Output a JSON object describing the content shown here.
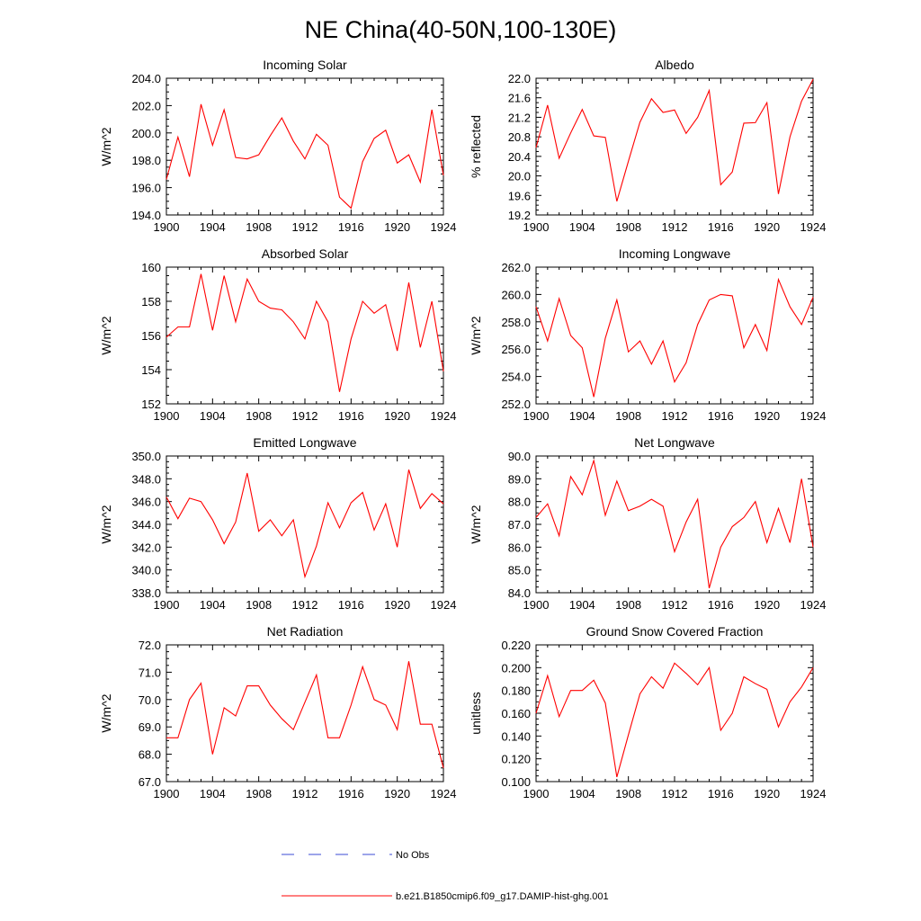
{
  "figure": {
    "title": "NE China(40-50N,100-130E)"
  },
  "colors": {
    "model_line": "#ff0000",
    "obs_line": "#3b4bd6",
    "frame": "#000000",
    "background": "#ffffff"
  },
  "legend": {
    "items": [
      {
        "label": "No Obs",
        "style": "dashed",
        "color": "#3b4bd6"
      },
      {
        "label": "b.e21.B1850cmip6.f09_g17.DAMIP-hist-ghg.001",
        "style": "solid",
        "color": "#ff0000"
      }
    ]
  },
  "chart_data": [
    {
      "type": "line",
      "title": "Incoming Solar",
      "xlabel": "",
      "ylabel": "W/m^2",
      "xlim": [
        1900,
        1924
      ],
      "ylim": [
        194.0,
        204.0
      ],
      "xticks": [
        1900,
        1904,
        1908,
        1912,
        1916,
        1920,
        1924
      ],
      "xtick_labels": [
        "1900",
        "1904",
        "1908",
        "1912",
        "1916",
        "1920",
        "1924"
      ],
      "yticks": [
        194,
        196,
        198,
        200,
        202,
        204
      ],
      "ytick_labels": [
        "194.0",
        "196.0",
        "198.0",
        "200.0",
        "202.0",
        "204.0"
      ],
      "grid": false,
      "series": [
        {
          "color": "#ff0000",
          "x": [
            1900,
            1901,
            1902,
            1903,
            1904,
            1905,
            1906,
            1907,
            1908,
            1909,
            1910,
            1911,
            1912,
            1913,
            1914,
            1915,
            1916,
            1917,
            1918,
            1919,
            1920,
            1921,
            1922,
            1923,
            1924
          ],
          "y": [
            196.6,
            199.7,
            196.8,
            202.1,
            199.1,
            201.7,
            198.2,
            198.1,
            198.4,
            199.8,
            201.1,
            199.4,
            198.1,
            199.9,
            199.1,
            195.3,
            194.5,
            197.9,
            199.6,
            200.2,
            197.8,
            198.4,
            196.4,
            201.7,
            196.9
          ]
        }
      ]
    },
    {
      "type": "line",
      "title": "Albedo",
      "xlabel": "",
      "ylabel": "% reflected",
      "xlim": [
        1900,
        1924
      ],
      "ylim": [
        19.2,
        22.0
      ],
      "xticks": [
        1900,
        1904,
        1908,
        1912,
        1916,
        1920,
        1924
      ],
      "xtick_labels": [
        "1900",
        "1904",
        "1908",
        "1912",
        "1916",
        "1920",
        "1924"
      ],
      "yticks": [
        19.2,
        19.6,
        20.0,
        20.4,
        20.8,
        21.2,
        21.6,
        22.0
      ],
      "ytick_labels": [
        "19.2",
        "19.6",
        "20.0",
        "20.4",
        "20.8",
        "21.2",
        "21.6",
        "22.0"
      ],
      "grid": false,
      "series": [
        {
          "color": "#ff0000",
          "x": [
            1900,
            1901,
            1902,
            1903,
            1904,
            1905,
            1906,
            1907,
            1908,
            1909,
            1910,
            1911,
            1912,
            1913,
            1914,
            1915,
            1916,
            1917,
            1918,
            1919,
            1920,
            1921,
            1922,
            1923,
            1924
          ],
          "y": [
            20.58,
            21.45,
            20.36,
            20.88,
            21.36,
            20.82,
            20.79,
            19.48,
            20.3,
            21.1,
            21.58,
            21.3,
            21.35,
            20.87,
            21.2,
            21.75,
            19.82,
            20.08,
            21.08,
            21.09,
            21.5,
            19.63,
            20.8,
            21.53,
            21.98
          ]
        }
      ]
    },
    {
      "type": "line",
      "title": "Absorbed Solar",
      "xlabel": "",
      "ylabel": "W/m^2",
      "xlim": [
        1900,
        1924
      ],
      "ylim": [
        152,
        160
      ],
      "xticks": [
        1900,
        1904,
        1908,
        1912,
        1916,
        1920,
        1924
      ],
      "xtick_labels": [
        "1900",
        "1904",
        "1908",
        "1912",
        "1916",
        "1920",
        "1924"
      ],
      "yticks": [
        152,
        154,
        156,
        158,
        160
      ],
      "ytick_labels": [
        "152",
        "154",
        "156",
        "158",
        "160"
      ],
      "grid": false,
      "series": [
        {
          "color": "#ff0000",
          "x": [
            1900,
            1901,
            1902,
            1903,
            1904,
            1905,
            1906,
            1907,
            1908,
            1909,
            1910,
            1911,
            1912,
            1913,
            1914,
            1915,
            1916,
            1917,
            1918,
            1919,
            1920,
            1921,
            1922,
            1923,
            1924
          ],
          "y": [
            155.9,
            156.5,
            156.5,
            159.6,
            156.3,
            159.5,
            156.8,
            159.3,
            158.0,
            157.6,
            157.5,
            156.8,
            155.8,
            158.0,
            156.8,
            152.7,
            155.8,
            158.0,
            157.3,
            157.8,
            155.1,
            159.1,
            155.3,
            158.0,
            153.9
          ]
        }
      ]
    },
    {
      "type": "line",
      "title": "Incoming Longwave",
      "xlabel": "",
      "ylabel": "W/m^2",
      "xlim": [
        1900,
        1924
      ],
      "ylim": [
        252.0,
        262.0
      ],
      "xticks": [
        1900,
        1904,
        1908,
        1912,
        1916,
        1920,
        1924
      ],
      "xtick_labels": [
        "1900",
        "1904",
        "1908",
        "1912",
        "1916",
        "1920",
        "1924"
      ],
      "yticks": [
        252,
        254,
        256,
        258,
        260,
        262
      ],
      "ytick_labels": [
        "252.0",
        "254.0",
        "256.0",
        "258.0",
        "260.0",
        "262.0"
      ],
      "grid": false,
      "series": [
        {
          "color": "#ff0000",
          "x": [
            1900,
            1901,
            1902,
            1903,
            1904,
            1905,
            1906,
            1907,
            1908,
            1909,
            1910,
            1911,
            1912,
            1913,
            1914,
            1915,
            1916,
            1917,
            1918,
            1919,
            1920,
            1921,
            1922,
            1923,
            1924
          ],
          "y": [
            259.1,
            256.6,
            259.7,
            257.0,
            256.1,
            252.5,
            256.8,
            259.6,
            255.8,
            256.6,
            254.9,
            256.6,
            253.6,
            255.0,
            257.8,
            259.6,
            260.0,
            259.9,
            256.1,
            257.8,
            255.9,
            261.1,
            259.1,
            257.8,
            259.8
          ]
        }
      ]
    },
    {
      "type": "line",
      "title": "Emitted Longwave",
      "xlabel": "",
      "ylabel": "W/m^2",
      "xlim": [
        1900,
        1924
      ],
      "ylim": [
        338.0,
        350.0
      ],
      "xticks": [
        1900,
        1904,
        1908,
        1912,
        1916,
        1920,
        1924
      ],
      "xtick_labels": [
        "1900",
        "1904",
        "1908",
        "1912",
        "1916",
        "1920",
        "1924"
      ],
      "yticks": [
        338,
        340,
        342,
        344,
        346,
        348,
        350
      ],
      "ytick_labels": [
        "338.0",
        "340.0",
        "342.0",
        "344.0",
        "346.0",
        "348.0",
        "350.0"
      ],
      "grid": false,
      "series": [
        {
          "color": "#ff0000",
          "x": [
            1900,
            1901,
            1902,
            1903,
            1904,
            1905,
            1906,
            1907,
            1908,
            1909,
            1910,
            1911,
            1912,
            1913,
            1914,
            1915,
            1916,
            1917,
            1918,
            1919,
            1920,
            1921,
            1922,
            1923,
            1924
          ],
          "y": [
            346.4,
            344.5,
            346.3,
            346.0,
            344.4,
            342.3,
            344.2,
            348.5,
            343.4,
            344.4,
            343.0,
            344.4,
            339.4,
            342.1,
            345.9,
            343.7,
            345.9,
            346.8,
            343.5,
            345.8,
            342.0,
            348.8,
            345.4,
            346.7,
            345.8
          ]
        }
      ]
    },
    {
      "type": "line",
      "title": "Net Longwave",
      "xlabel": "",
      "ylabel": "W/m^2",
      "xlim": [
        1900,
        1924
      ],
      "ylim": [
        84.0,
        90.0
      ],
      "xticks": [
        1900,
        1904,
        1908,
        1912,
        1916,
        1920,
        1924
      ],
      "xtick_labels": [
        "1900",
        "1904",
        "1908",
        "1912",
        "1916",
        "1920",
        "1924"
      ],
      "yticks": [
        84,
        85,
        86,
        87,
        88,
        89,
        90
      ],
      "ytick_labels": [
        "84.0",
        "85.0",
        "86.0",
        "87.0",
        "88.0",
        "89.0",
        "90.0"
      ],
      "grid": false,
      "series": [
        {
          "color": "#ff0000",
          "x": [
            1900,
            1901,
            1902,
            1903,
            1904,
            1905,
            1906,
            1907,
            1908,
            1909,
            1910,
            1911,
            1912,
            1913,
            1914,
            1915,
            1916,
            1917,
            1918,
            1919,
            1920,
            1921,
            1922,
            1923,
            1924
          ],
          "y": [
            87.3,
            87.9,
            86.5,
            89.1,
            88.3,
            89.8,
            87.4,
            88.9,
            87.6,
            87.8,
            88.1,
            87.8,
            85.8,
            87.1,
            88.1,
            84.2,
            86.0,
            86.9,
            87.3,
            88.0,
            86.2,
            87.7,
            86.2,
            89.0,
            86.0
          ]
        }
      ]
    },
    {
      "type": "line",
      "title": "Net Radiation",
      "xlabel": "",
      "ylabel": "W/m^2",
      "xlim": [
        1900,
        1924
      ],
      "ylim": [
        67.0,
        72.0
      ],
      "xticks": [
        1900,
        1904,
        1908,
        1912,
        1916,
        1920,
        1924
      ],
      "xtick_labels": [
        "1900",
        "1904",
        "1908",
        "1912",
        "1916",
        "1920",
        "1924"
      ],
      "yticks": [
        67,
        68,
        69,
        70,
        71,
        72
      ],
      "ytick_labels": [
        "67.0",
        "68.0",
        "69.0",
        "70.0",
        "71.0",
        "72.0"
      ],
      "grid": false,
      "series": [
        {
          "color": "#ff0000",
          "x": [
            1900,
            1901,
            1902,
            1903,
            1904,
            1905,
            1906,
            1907,
            1908,
            1909,
            1910,
            1911,
            1912,
            1913,
            1914,
            1915,
            1916,
            1917,
            1918,
            1919,
            1920,
            1921,
            1922,
            1923,
            1924
          ],
          "y": [
            68.6,
            68.6,
            70.0,
            70.6,
            68.0,
            69.7,
            69.4,
            70.5,
            70.5,
            69.8,
            69.3,
            68.9,
            69.9,
            70.9,
            68.6,
            68.6,
            69.8,
            71.2,
            70.0,
            69.8,
            68.9,
            71.4,
            69.1,
            69.1,
            67.5
          ]
        }
      ]
    },
    {
      "type": "line",
      "title": "Ground Snow Covered Fraction",
      "xlabel": "",
      "ylabel": "unitless",
      "xlim": [
        1900,
        1924
      ],
      "ylim": [
        0.1,
        0.22
      ],
      "xticks": [
        1900,
        1904,
        1908,
        1912,
        1916,
        1920,
        1924
      ],
      "xtick_labels": [
        "1900",
        "1904",
        "1908",
        "1912",
        "1916",
        "1920",
        "1924"
      ],
      "yticks": [
        0.1,
        0.12,
        0.14,
        0.16,
        0.18,
        0.2,
        0.22
      ],
      "ytick_labels": [
        "0.100",
        "0.120",
        "0.140",
        "0.160",
        "0.180",
        "0.200",
        "0.220"
      ],
      "grid": false,
      "series": [
        {
          "color": "#ff0000",
          "x": [
            1900,
            1901,
            1902,
            1903,
            1904,
            1905,
            1906,
            1907,
            1908,
            1909,
            1910,
            1911,
            1912,
            1913,
            1914,
            1915,
            1916,
            1917,
            1918,
            1919,
            1920,
            1921,
            1922,
            1923,
            1924
          ],
          "y": [
            0.16,
            0.193,
            0.157,
            0.18,
            0.18,
            0.189,
            0.169,
            0.104,
            0.141,
            0.177,
            0.192,
            0.182,
            0.204,
            0.195,
            0.185,
            0.2,
            0.145,
            0.16,
            0.192,
            0.186,
            0.181,
            0.148,
            0.17,
            0.183,
            0.2
          ]
        }
      ]
    }
  ]
}
